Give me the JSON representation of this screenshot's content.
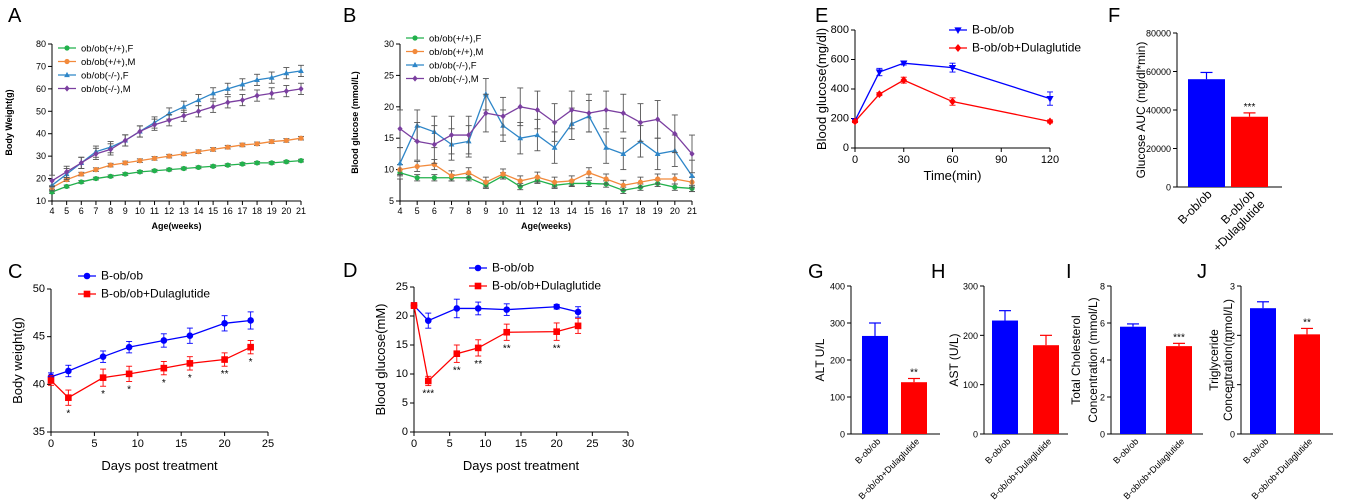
{
  "panel_labels": [
    "A",
    "B",
    "C",
    "D",
    "E",
    "F",
    "G",
    "H",
    "I",
    "J"
  ],
  "colors": {
    "green": "#22b14c",
    "orange": "#f28a3c",
    "lightblue": "#2e86c8",
    "purple": "#7b3fa0",
    "blue": "#0000ff",
    "red": "#ff0000"
  },
  "chart_data": [
    {
      "id": "A",
      "type": "line",
      "ylabel": "Body Weight(g)",
      "xlabel": "Age(weeks)",
      "xlim": [
        4,
        21
      ],
      "ylim": [
        10,
        80
      ],
      "xticks": [
        4,
        5,
        6,
        7,
        8,
        9,
        10,
        11,
        12,
        13,
        14,
        15,
        16,
        17,
        18,
        19,
        20,
        21
      ],
      "yticks": [
        10,
        20,
        30,
        40,
        50,
        60,
        70,
        80
      ],
      "x": [
        4,
        5,
        6,
        7,
        8,
        9,
        10,
        11,
        12,
        13,
        14,
        15,
        16,
        17,
        18,
        19,
        20,
        21
      ],
      "series": [
        {
          "name": "ob/ob(+/+),F",
          "color": "green",
          "marker": "circle",
          "values": [
            14,
            16.5,
            18.5,
            20,
            21,
            22,
            23,
            23.5,
            24,
            24.5,
            25,
            25.5,
            26,
            26.5,
            27,
            27,
            27.5,
            28
          ],
          "err": 0.6
        },
        {
          "name": "ob/ob(+/+),M",
          "color": "orange",
          "marker": "circle",
          "values": [
            16,
            19.5,
            22,
            24,
            26,
            27,
            28,
            29,
            30,
            31,
            32,
            33,
            34,
            35,
            35.5,
            36.5,
            37,
            38
          ],
          "err": 0.8
        },
        {
          "name": "ob/ob(-/-),F",
          "color": "lightblue",
          "marker": "triangle",
          "values": [
            17,
            22,
            27,
            32,
            34,
            37,
            41,
            45,
            49,
            52,
            55,
            58,
            60,
            62,
            64,
            65,
            67,
            68
          ],
          "err": 2.5
        },
        {
          "name": "ob/ob(-/-),M",
          "color": "purple",
          "marker": "diamond",
          "values": [
            19,
            23,
            27,
            31,
            33,
            37,
            41,
            44,
            46,
            48,
            50,
            52,
            54,
            55,
            57,
            58,
            59,
            60
          ],
          "err": 2.5
        }
      ]
    },
    {
      "id": "B",
      "type": "line",
      "ylabel": "Blood glucose (mmol/L)",
      "xlabel": "Age(weeks)",
      "xlim": [
        4,
        21
      ],
      "ylim": [
        5,
        30
      ],
      "xticks": [
        4,
        5,
        6,
        7,
        8,
        9,
        10,
        11,
        12,
        13,
        14,
        15,
        16,
        17,
        18,
        19,
        20,
        21
      ],
      "yticks": [
        5,
        10,
        15,
        20,
        25,
        30
      ],
      "x": [
        4,
        5,
        6,
        7,
        8,
        9,
        10,
        11,
        12,
        13,
        14,
        15,
        16,
        17,
        18,
        19,
        20,
        21
      ],
      "series": [
        {
          "name": "ob/ob(+/+),F",
          "color": "green",
          "marker": "circle",
          "values": [
            9.5,
            8.7,
            8.7,
            8.7,
            8.7,
            7.5,
            9,
            7.3,
            8.3,
            7.5,
            7.8,
            7.8,
            7.7,
            6.7,
            7.2,
            7.8,
            7.2,
            7
          ],
          "err": 0.5
        },
        {
          "name": "ob/ob(+/+),M",
          "color": "orange",
          "marker": "circle",
          "values": [
            10,
            10.5,
            10.8,
            9,
            9.5,
            8,
            9.3,
            8.2,
            8.8,
            8,
            8.2,
            9.5,
            8.5,
            7.5,
            8,
            8.5,
            8.5,
            8
          ],
          "err": 0.8
        },
        {
          "name": "ob/ob(-/-),F",
          "color": "lightblue",
          "marker": "triangle",
          "values": [
            11,
            17,
            16,
            14,
            14.5,
            22,
            17,
            15,
            15.5,
            13.5,
            17.3,
            18.5,
            13.5,
            12.5,
            14.5,
            12.5,
            13,
            9
          ],
          "err": 2.5
        },
        {
          "name": "ob/ob(-/-),M",
          "color": "purple",
          "marker": "diamond",
          "values": [
            16.5,
            14.5,
            14,
            15.5,
            15.5,
            19,
            18.5,
            20,
            19.5,
            17.5,
            19.5,
            19,
            19.5,
            19,
            17.5,
            18,
            15.7,
            12.5
          ],
          "err": 3
        }
      ]
    },
    {
      "id": "C",
      "type": "line",
      "ylabel": "Body weight(g)",
      "xlabel": "Days post treatment",
      "xlim": [
        0,
        25
      ],
      "ylim": [
        35,
        50
      ],
      "xticks": [
        0,
        5,
        10,
        15,
        20,
        25
      ],
      "yticks": [
        35,
        40,
        45,
        50
      ],
      "series": [
        {
          "name": "B-ob/ob",
          "color": "blue",
          "marker": "circle",
          "x": [
            0,
            2,
            6,
            9,
            13,
            16,
            20,
            23
          ],
          "values": [
            40.8,
            41.4,
            42.9,
            43.9,
            44.6,
            45.1,
            46.4,
            46.7
          ],
          "err": [
            0.4,
            0.6,
            0.6,
            0.6,
            0.7,
            0.8,
            0.8,
            0.9
          ]
        },
        {
          "name": "B-ob/ob+Dulaglutide",
          "color": "red",
          "marker": "square",
          "x": [
            0,
            2,
            6,
            9,
            13,
            16,
            20,
            23
          ],
          "values": [
            40.4,
            38.6,
            40.7,
            41.1,
            41.7,
            42.2,
            42.6,
            43.9
          ],
          "err": [
            0.5,
            0.8,
            0.9,
            0.8,
            0.7,
            0.7,
            0.7,
            0.7
          ]
        }
      ],
      "annotations": [
        {
          "x": 2,
          "text": "*"
        },
        {
          "x": 6,
          "text": "*"
        },
        {
          "x": 9,
          "text": "*"
        },
        {
          "x": 13,
          "text": "*"
        },
        {
          "x": 16,
          "text": "*"
        },
        {
          "x": 20,
          "text": "**"
        },
        {
          "x": 23,
          "text": "*"
        }
      ]
    },
    {
      "id": "D",
      "type": "line",
      "ylabel": "Blood glucose(mM)",
      "xlabel": "Days post treatment",
      "xlim": [
        0,
        30
      ],
      "ylim": [
        0,
        25
      ],
      "xticks": [
        0,
        5,
        10,
        15,
        20,
        25,
        30
      ],
      "yticks": [
        0,
        5,
        10,
        15,
        20,
        25
      ],
      "series": [
        {
          "name": "B-ob/ob",
          "color": "blue",
          "marker": "circle",
          "x": [
            0,
            2,
            6,
            9,
            13,
            20,
            23
          ],
          "values": [
            21.8,
            19.2,
            21.3,
            21.3,
            21.1,
            21.6,
            20.7
          ],
          "err": [
            0.5,
            1.3,
            1.6,
            1.1,
            1.0,
            0.4,
            0.9
          ]
        },
        {
          "name": "B-ob/ob+Dulaglutide",
          "color": "red",
          "marker": "square",
          "x": [
            0,
            2,
            6,
            9,
            13,
            20,
            23
          ],
          "values": [
            21.8,
            8.8,
            13.5,
            14.5,
            17.2,
            17.3,
            18.3
          ],
          "err": [
            0.5,
            0.8,
            1.5,
            1.4,
            1.4,
            1.5,
            1.3
          ]
        }
      ],
      "annotations": [
        {
          "x": 2,
          "text": "***"
        },
        {
          "x": 6,
          "text": "**"
        },
        {
          "x": 9,
          "text": "**"
        },
        {
          "x": 13,
          "text": "**"
        },
        {
          "x": 20,
          "text": "**"
        }
      ]
    },
    {
      "id": "E",
      "type": "line",
      "ylabel": "Blood glucose(mg/dl)",
      "xlabel": "Time(min)",
      "xlim": [
        0,
        120
      ],
      "ylim": [
        0,
        800
      ],
      "xticks": [
        0,
        30,
        60,
        90,
        120
      ],
      "yticks": [
        0,
        200,
        400,
        600,
        800
      ],
      "series": [
        {
          "name": "B-ob/ob",
          "color": "blue",
          "marker": "triangle-down",
          "x": [
            0,
            15,
            30,
            60,
            120
          ],
          "values": [
            185,
            515,
            575,
            545,
            335
          ],
          "err": [
            10,
            25,
            12,
            30,
            45
          ]
        },
        {
          "name": "B-ob/ob+Dulaglutide",
          "color": "red",
          "marker": "diamond",
          "x": [
            0,
            15,
            30,
            60,
            120
          ],
          "values": [
            180,
            365,
            460,
            315,
            180
          ],
          "err": [
            8,
            10,
            20,
            25,
            10
          ]
        }
      ]
    },
    {
      "id": "F",
      "type": "bar",
      "ylabel": "Glucose AUC (mg/dl*min)",
      "categories": [
        "B-ob/ob",
        "B-ob/ob\n+Dulaglutide"
      ],
      "values": [
        56000,
        36500
      ],
      "err": [
        3500,
        2000
      ],
      "ylim": [
        0,
        80000
      ],
      "yticks": [
        0,
        20000,
        40000,
        60000,
        80000
      ],
      "significance": [
        "",
        "***"
      ]
    },
    {
      "id": "G",
      "type": "bar",
      "ylabel": "ALT U/L",
      "categories": [
        "B-ob/ob",
        "B-ob/ob+Dulaglutide"
      ],
      "values": [
        265,
        140
      ],
      "err": [
        35,
        10
      ],
      "ylim": [
        0,
        400
      ],
      "yticks": [
        0,
        100,
        200,
        300,
        400
      ],
      "significance": [
        "",
        "**"
      ]
    },
    {
      "id": "H",
      "type": "bar",
      "ylabel": "AST (U/L)",
      "categories": [
        "B-ob/ob",
        "B-ob/ob+Dulaglutide"
      ],
      "values": [
        230,
        180
      ],
      "err": [
        20,
        20
      ],
      "ylim": [
        0,
        300
      ],
      "yticks": [
        0,
        100,
        200,
        300
      ],
      "significance": [
        "",
        ""
      ]
    },
    {
      "id": "I",
      "type": "bar",
      "ylabel": "Total Cholesterol\nConcentration (mmol/L)",
      "categories": [
        "B-ob/ob",
        "B-ob/ob+Dulaglutide"
      ],
      "values": [
        5.8,
        4.75
      ],
      "err": [
        0.15,
        0.15
      ],
      "ylim": [
        0,
        8
      ],
      "yticks": [
        0,
        2,
        4,
        6,
        8
      ],
      "significance": [
        "",
        "***"
      ]
    },
    {
      "id": "J",
      "type": "bar",
      "ylabel": "Triglyceride\nConcentration(mmol/L)",
      "categories": [
        "B-ob/ob",
        "B-ob/ob+Dulaglutide"
      ],
      "values": [
        2.55,
        2.02
      ],
      "err": [
        0.13,
        0.12
      ],
      "ylim": [
        0,
        3
      ],
      "yticks": [
        0,
        1,
        2,
        3
      ],
      "significance": [
        "",
        "**"
      ]
    }
  ]
}
